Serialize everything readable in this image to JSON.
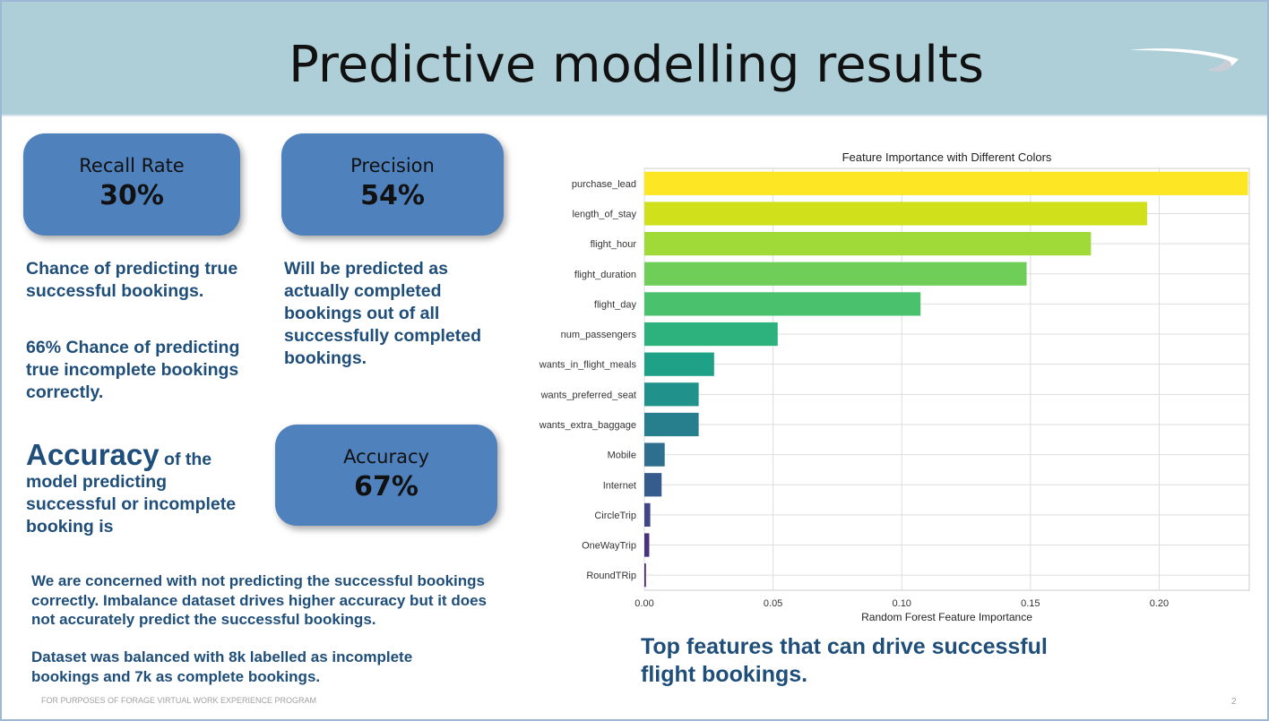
{
  "slide": {
    "title": "Predictive modelling results",
    "footer": "FOR PURPOSES OF FORAGE VIRTUAL WORK EXPERIENCE PROGRAM",
    "page_number": "2"
  },
  "cards": {
    "recall": {
      "label": "Recall Rate",
      "value": "30%"
    },
    "precision": {
      "label": "Precision",
      "value": "54%"
    },
    "accuracy": {
      "label": "Accuracy",
      "value": "67%"
    }
  },
  "text": {
    "recall_desc": "Chance of predicting true successful bookings.",
    "incomplete_desc": "66% Chance of predicting true incomplete bookings correctly.",
    "precision_desc": "Will be predicted as actually completed bookings out of all successfully completed bookings.",
    "accuracy_word": "Accuracy",
    "accuracy_rest": "of the",
    "accuracy_desc": "model predicting successful or incomplete booking is",
    "concern": "We are concerned with not predicting the successful bookings correctly. Imbalance dataset drives higher accuracy but it does not accurately predict the successful bookings.",
    "balanced": "Dataset was balanced with 8k labelled as incomplete bookings and 7k as complete bookings.",
    "top_features": "Top features that can drive successful flight bookings."
  },
  "chart_data": {
    "type": "bar",
    "orientation": "horizontal",
    "title": "Feature Importance with Different Colors",
    "xlabel": "Random Forest Feature Importance",
    "ylabel": "",
    "xlim": [
      0,
      0.235
    ],
    "xticks": [
      0.0,
      0.05,
      0.1,
      0.15,
      0.2
    ],
    "xtick_labels": [
      "0.00",
      "0.05",
      "0.10",
      "0.15",
      "0.20"
    ],
    "grid": true,
    "categories": [
      "purchase_lead",
      "length_of_stay",
      "flight_hour",
      "flight_duration",
      "flight_day",
      "num_passengers",
      "wants_in_flight_meals",
      "wants_preferred_seat",
      "wants_extra_baggage",
      "Mobile",
      "Internet",
      "CircleTrip",
      "OneWayTrip",
      "RoundTRip"
    ],
    "values": [
      0.2345,
      0.1953,
      0.1735,
      0.1485,
      0.1073,
      0.0518,
      0.0271,
      0.0211,
      0.0211,
      0.0079,
      0.0067,
      0.0023,
      0.0019,
      0.0006
    ],
    "colors": [
      "#fde725",
      "#d0e11c",
      "#a0da39",
      "#6ece58",
      "#4ac16d",
      "#2db27d",
      "#1fa187",
      "#21918c",
      "#277f8e",
      "#2e6e8e",
      "#365c8d",
      "#3f4788",
      "#46327e",
      "#482173"
    ]
  }
}
